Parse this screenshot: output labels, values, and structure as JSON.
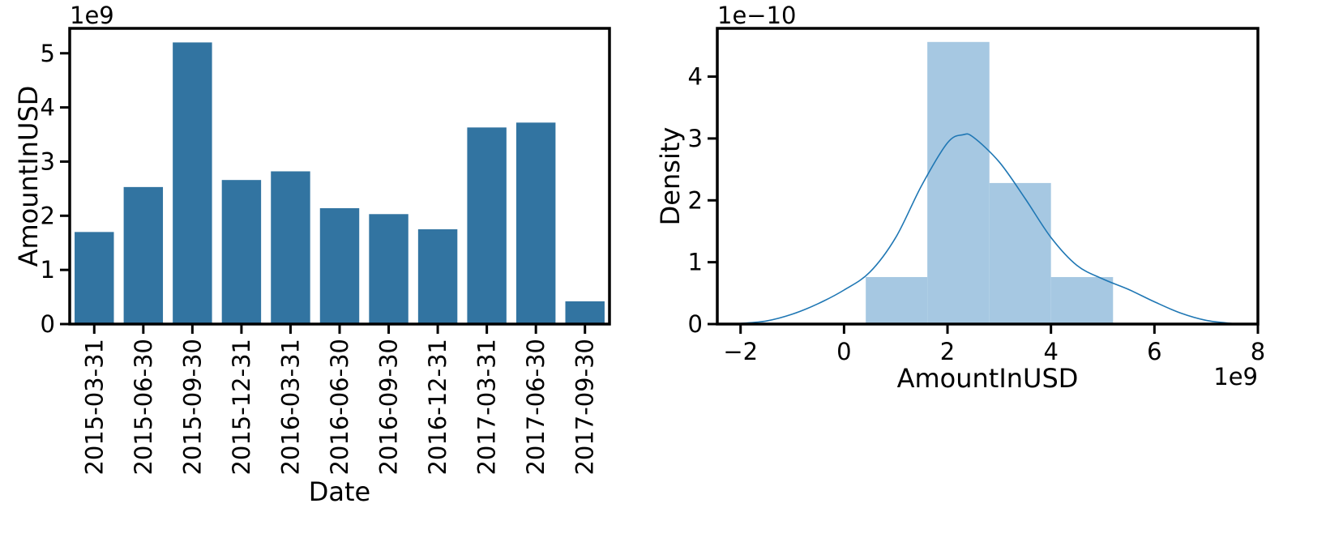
{
  "colors": {
    "bar": "#3274a1",
    "hist": "#a6c8e2",
    "kde": "#1f77b4",
    "axis": "#000000"
  },
  "chart_data": [
    {
      "type": "bar",
      "title": "",
      "xlabel": "Date",
      "ylabel": "AmountInUSD",
      "y_offset_label": "1e9",
      "categories": [
        "2015-03-31",
        "2015-06-30",
        "2015-09-30",
        "2015-12-31",
        "2016-03-31",
        "2016-06-30",
        "2016-09-30",
        "2016-12-31",
        "2017-03-31",
        "2017-06-30",
        "2017-09-30"
      ],
      "values": [
        1.7,
        2.53,
        5.2,
        2.66,
        2.82,
        2.14,
        2.03,
        1.75,
        3.63,
        3.72,
        0.42
      ],
      "ylim": [
        0,
        5.46
      ],
      "yticks": [
        0,
        1,
        2,
        3,
        4,
        5
      ],
      "grid": false
    },
    {
      "type": "histogram",
      "title": "",
      "xlabel": "AmountInUSD",
      "ylabel": "Density",
      "x_offset_label": "1e9",
      "y_offset_label": "1e−10",
      "bins": [
        {
          "x0": 0.42,
          "x1": 1.61,
          "density": 0.76
        },
        {
          "x0": 1.61,
          "x1": 2.81,
          "density": 4.56
        },
        {
          "x0": 2.81,
          "x1": 4.0,
          "density": 2.28
        },
        {
          "x0": 4.0,
          "x1": 5.2,
          "density": 0.76
        }
      ],
      "kde": {
        "x": [
          -2.0,
          -1.5,
          -1.0,
          -0.5,
          0.0,
          0.5,
          1.0,
          1.5,
          2.0,
          2.3,
          2.5,
          3.0,
          3.5,
          4.0,
          4.5,
          5.0,
          5.5,
          6.0,
          6.5,
          7.0,
          7.5
        ],
        "y": [
          0.01,
          0.05,
          0.16,
          0.33,
          0.55,
          0.84,
          1.4,
          2.24,
          2.93,
          3.06,
          3.02,
          2.62,
          2.03,
          1.4,
          0.95,
          0.73,
          0.56,
          0.36,
          0.18,
          0.06,
          0.01
        ]
      },
      "xlim": [
        -2.45,
        8.0
      ],
      "ylim": [
        0,
        4.78
      ],
      "xticks": [
        -2,
        0,
        2,
        4,
        6,
        8
      ],
      "xtick_labels": [
        "−2",
        "0",
        "2",
        "4",
        "6",
        "8"
      ],
      "yticks": [
        0,
        1,
        2,
        3,
        4
      ],
      "grid": false
    }
  ]
}
